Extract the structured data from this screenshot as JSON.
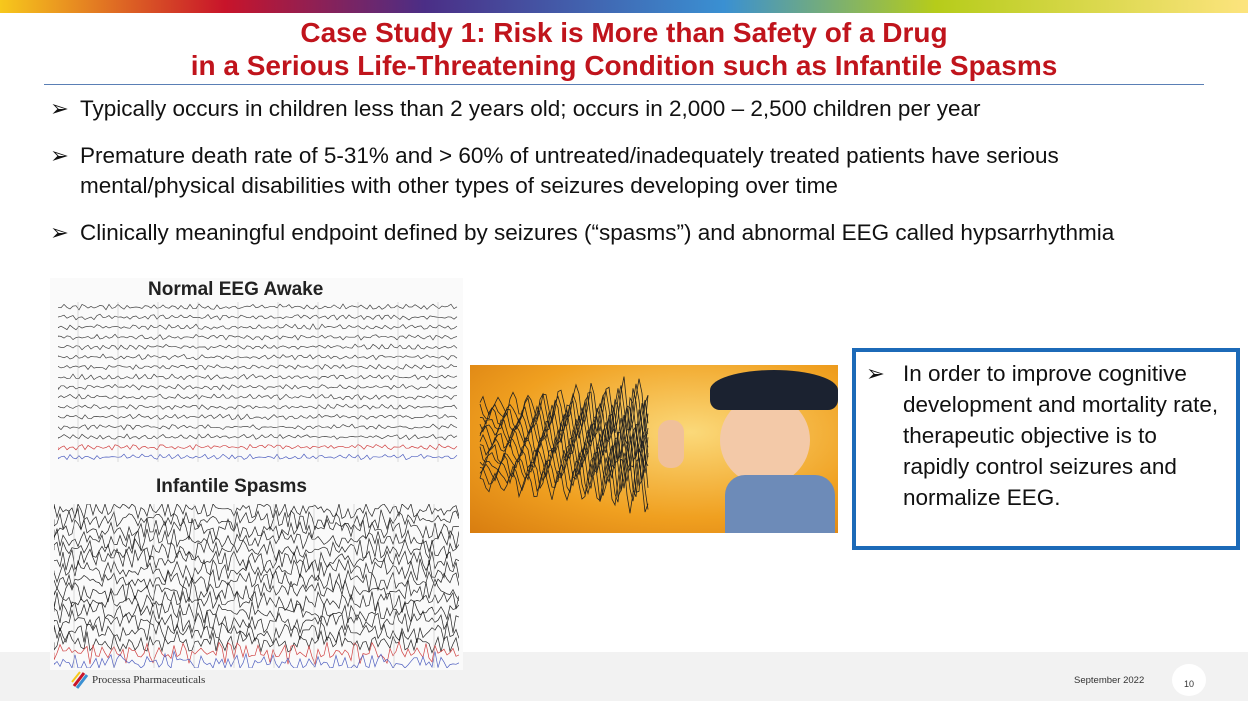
{
  "title": {
    "line1": "Case Study 1: Risk is More than Safety of a Drug",
    "line2": "in a Serious Life-Threatening Condition such as Infantile Spasms"
  },
  "bullets": [
    "Typically occurs in children less than 2 years old;  occurs in 2,000 – 2,500 children per year",
    "Premature death rate of 5-31% and > 60% of untreated/inadequately treated patients have serious mental/physical disabilities with other types of seizures developing over time",
    "Clinically meaningful endpoint defined by seizures (“spasms”) and abnormal EEG called hypsarrhythmia"
  ],
  "images": {
    "eeg_normal_label": "Normal EEG Awake",
    "eeg_spasms_label": "Infantile Spasms"
  },
  "callout": "In order to improve cognitive development and mortality rate, therapeutic objective is to rapidly control seizures and normalize EEG.",
  "footer": {
    "company": "Processa Pharmaceuticals",
    "date": "September 2022",
    "page": "10"
  },
  "icons": {
    "bullet": "arrowhead-bullet-icon"
  },
  "colors": {
    "title": "#c0141c",
    "callout_border": "#1c6ab8"
  }
}
